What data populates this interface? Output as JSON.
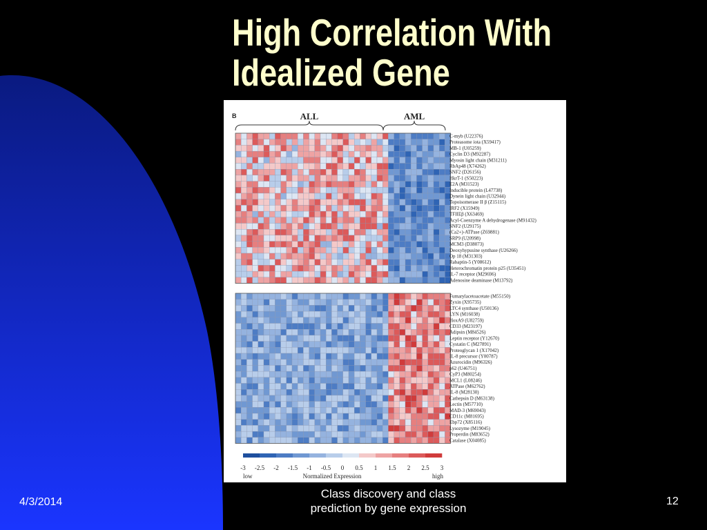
{
  "slide": {
    "title_line1": "High Correlation With",
    "title_line2": "Idealized Gene",
    "footer_date": "4/3/2014",
    "footer_center_line1": "Class discovery and class",
    "footer_center_line2": "prediction by gene expression",
    "page_number": "12",
    "colors": {
      "background": "#000000",
      "arc_top": "#0a1a80",
      "arc_bottom": "#1a35ff",
      "title": "#ffffcc"
    }
  },
  "chart_data": {
    "type": "heatmap",
    "panel_label": "B",
    "groups": [
      "ALL",
      "AML"
    ],
    "group_columns": {
      "ALL": 27,
      "AML": 11
    },
    "top_block_title": "",
    "top_block_genes": [
      "C-myb (U22376)",
      "Proteasome iota (X59417)",
      "MB-1 (U05259)",
      "Cyclin D3 (M92287)",
      "Myosin light chain (M31211)",
      "RbAp48 (X74262)",
      "SNF2 (D26156)",
      "HkrT-1 (S50223)",
      "E2A (M31523)",
      "Inducible protein (L47738)",
      "Dynein light chain (U32944)",
      "Topoisomerase II β (Z15115)",
      "IRF2 (X15949)",
      "TFIIEβ (X63469)",
      "Acyl-Coenzyme A dehydrogenase (M91432)",
      "SNF2 (U29175)",
      "(Ca2+)-ATPase (Z69881)",
      "SRP9 (U20998)",
      "MCM3 (D38073)",
      "Deoxyhypusine synthase (U26266)",
      "Op 18 (M31303)",
      "Rabaptin-5 (Y08612)",
      "Heterochromatin protein p25 (U35451)",
      "IL-7 receptor (M29696)",
      "Adenosine deaminase (M13792)"
    ],
    "bottom_block_genes": [
      "Fumarylacetoacetate (M55150)",
      "Zyxin (X95735)",
      "LTC4 synthase (U50136)",
      "LYN (M16038)",
      "HoxA9 (U82759)",
      "CD33 (M23197)",
      "Adipsin (M84526)",
      "Leptin receptor (Y12670)",
      "Cystatin C (M27891)",
      "Proteoglycan 1 (X17042)",
      "IL-8 precursor (Y00787)",
      "Azurocidin (M96326)",
      "p62 (U46751)",
      "CyP3 (M80254)",
      "MCL1 (L08246)",
      "ATPase (M62762)",
      "IL-8 (M28130)",
      "Cathepsin D (M63138)",
      "Lectin (M57710)",
      "MAD-3 (M69043)",
      "CD11c (M81695)",
      "Ebp72 (X85116)",
      "Lysozyme (M19045)",
      "Properdin (M83652)",
      "Catalase (X04085)"
    ],
    "pattern": {
      "top_block": "higher in ALL, lower in AML",
      "bottom_block": "lower in ALL, higher in AML"
    },
    "color_scale": {
      "ticks": [
        "-3",
        "-2.5",
        "-2",
        "-1.5",
        "-1",
        "-0.5",
        "0",
        "0.5",
        "1",
        "1.5",
        "2",
        "2.5",
        "3"
      ],
      "range": [
        -3,
        3
      ],
      "low_label": "low",
      "high_label": "high",
      "title": "Normalized Expression",
      "colors": [
        "#1e4f9e",
        "#2f64b4",
        "#4d7cc4",
        "#7098d2",
        "#95b3df",
        "#b8cdea",
        "#dde6f3",
        "#f4c9c9",
        "#eea3a3",
        "#e67f7f",
        "#dc5a5a",
        "#d03b3b"
      ]
    }
  }
}
